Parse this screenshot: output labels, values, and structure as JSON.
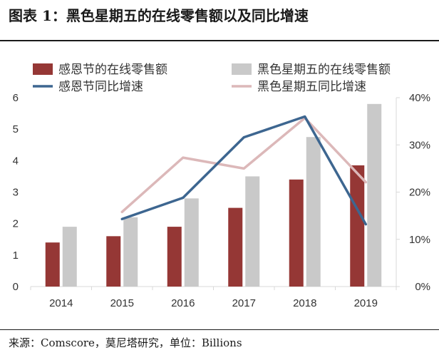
{
  "title": "图表 1：黑色星期五的在线零售额以及同比增速",
  "source": "来源：Comscore，莫尼塔研究，单位：Billions",
  "colors": {
    "cyber_monday_bar": "#953735",
    "black_friday_bar": "#c9c9c9",
    "cyber_monday_line": "#3d6690",
    "black_friday_line": "#dcb8b9",
    "axis": "#d9d9d9",
    "text": "#333333"
  },
  "chart_data": {
    "type": "bar",
    "categories": [
      "2014",
      "2015",
      "2016",
      "2017",
      "2018",
      "2019"
    ],
    "series": [
      {
        "name": "感恩节的在线零售额",
        "kind": "bar",
        "axis": "left",
        "values": [
          1.4,
          1.6,
          1.9,
          2.5,
          3.4,
          3.85
        ]
      },
      {
        "name": "黑色星期五的在线零售额",
        "kind": "bar",
        "axis": "left",
        "values": [
          1.9,
          2.2,
          2.8,
          3.5,
          4.75,
          5.8
        ]
      },
      {
        "name": "感恩节同比增速",
        "kind": "line",
        "axis": "right",
        "values": [
          null,
          0.143,
          0.188,
          0.316,
          0.36,
          0.132
        ]
      },
      {
        "name": "黑色星期五同比增速",
        "kind": "line",
        "axis": "right",
        "values": [
          null,
          0.158,
          0.273,
          0.25,
          0.357,
          0.221
        ]
      }
    ],
    "ylim_left": [
      0,
      6
    ],
    "yticks_left": [
      "0",
      "1",
      "2",
      "3",
      "4",
      "5",
      "6"
    ],
    "ylim_right": [
      0,
      0.4
    ],
    "yticks_right": [
      "0%",
      "10%",
      "20%",
      "30%",
      "40%"
    ],
    "grid": false,
    "legend_position": "top"
  }
}
